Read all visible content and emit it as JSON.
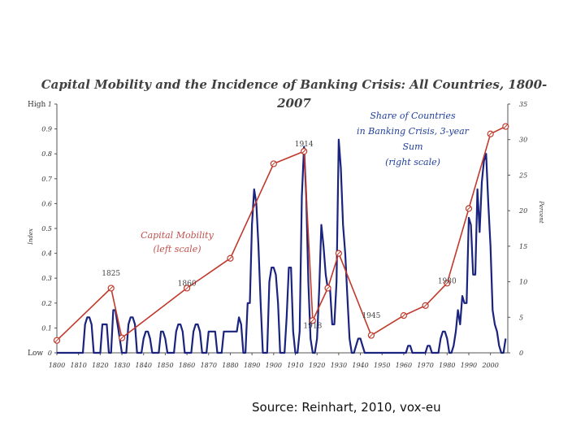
{
  "source_text": "Source: Reinhart, 2010, vox-eu",
  "chart_data": {
    "type": "line",
    "title_line1": "Capital Mobility and the Incidence of Banking Crisis: All Countries, 1800-",
    "title_line2": "2007",
    "x_ticks": [
      1800,
      1810,
      1820,
      1830,
      1840,
      1850,
      1860,
      1870,
      1880,
      1890,
      1900,
      1910,
      1920,
      1930,
      1940,
      1950,
      1960,
      1970,
      1980,
      1990,
      2000
    ],
    "xlim": [
      1800,
      2008
    ],
    "left_axis": {
      "label": "Index",
      "ylim": [
        0,
        1
      ],
      "ticks": [
        0,
        0.1,
        0.2,
        0.3,
        0.4,
        0.5,
        0.6,
        0.7,
        0.8,
        0.9,
        1
      ],
      "tick_labels": [
        "0",
        "0.1",
        "0.2",
        "0.3",
        "0.4",
        "0.5",
        "0.6",
        "0.7",
        "0.8",
        "0.9",
        "1"
      ],
      "high_label": "High",
      "low_label": "Low"
    },
    "right_axis": {
      "label": "Percent",
      "ylim": [
        0,
        35
      ],
      "ticks": [
        0,
        5,
        10,
        15,
        20,
        25,
        30,
        35
      ],
      "tick_labels": [
        "0",
        "5",
        "10",
        "15",
        "20",
        "25",
        "30",
        "35"
      ]
    },
    "annotations": {
      "capital_mobility": [
        "Capital Mobility",
        "(left scale)"
      ],
      "banking_crises": [
        "Share of Countries",
        "in Banking Crisis, 3-year",
        "Sum",
        "(right scale)"
      ]
    },
    "year_labels": [
      {
        "text": "1825",
        "x": 1825,
        "y": 0.31
      },
      {
        "text": "1860",
        "x": 1860,
        "y": 0.27
      },
      {
        "text": "1914",
        "x": 1914,
        "y": 0.83
      },
      {
        "text": "1918",
        "x": 1918,
        "y": 0.1
      },
      {
        "text": "1945",
        "x": 1945,
        "y": 0.14
      },
      {
        "text": "1980",
        "x": 1980,
        "y": 0.28
      }
    ],
    "series": [
      {
        "name": "Capital Mobility (left scale)",
        "axis": "left",
        "color": "#c0392b",
        "x": [
          1800,
          1825,
          1830,
          1860,
          1880,
          1900,
          1914,
          1918,
          1925,
          1930,
          1945,
          1960,
          1970,
          1980,
          1990,
          2000,
          2007
        ],
        "y": [
          0.05,
          0.26,
          0.06,
          0.26,
          0.38,
          0.76,
          0.81,
          0.13,
          0.26,
          0.4,
          0.07,
          0.15,
          0.19,
          0.28,
          0.58,
          0.88,
          0.91
        ]
      },
      {
        "name": "Share of Countries in Banking Crisis, 3-year Sum (right scale)",
        "axis": "right",
        "color": "#1a237e",
        "x": [
          1800,
          1812,
          1813,
          1814,
          1815,
          1816,
          1817,
          1818,
          1820,
          1821,
          1822,
          1823,
          1824,
          1825,
          1826,
          1827,
          1828,
          1829,
          1830,
          1832,
          1833,
          1834,
          1835,
          1836,
          1837,
          1838,
          1839,
          1840,
          1841,
          1842,
          1843,
          1844,
          1845,
          1847,
          1848,
          1849,
          1850,
          1851,
          1852,
          1854,
          1855,
          1856,
          1857,
          1858,
          1859,
          1860,
          1862,
          1863,
          1864,
          1865,
          1866,
          1867,
          1868,
          1869,
          1870,
          1871,
          1872,
          1873,
          1874,
          1875,
          1876,
          1877,
          1878,
          1879,
          1880,
          1881,
          1882,
          1883,
          1884,
          1885,
          1886,
          1887,
          1888,
          1889,
          1890,
          1891,
          1892,
          1893,
          1894,
          1895,
          1896,
          1897,
          1898,
          1899,
          1900,
          1901,
          1902,
          1903,
          1904,
          1905,
          1906,
          1907,
          1908,
          1909,
          1910,
          1911,
          1912,
          1913,
          1914,
          1915,
          1916,
          1917,
          1918,
          1919,
          1920,
          1921,
          1922,
          1923,
          1924,
          1925,
          1926,
          1927,
          1928,
          1929,
          1930,
          1931,
          1932,
          1933,
          1934,
          1935,
          1936,
          1937,
          1938,
          1939,
          1940,
          1941,
          1942,
          1943,
          1944,
          1945,
          1946,
          1947,
          1948,
          1949,
          1950,
          1951,
          1952,
          1953,
          1954,
          1955,
          1956,
          1957,
          1958,
          1959,
          1960,
          1961,
          1962,
          1963,
          1964,
          1965,
          1966,
          1967,
          1968,
          1969,
          1970,
          1971,
          1972,
          1973,
          1974,
          1975,
          1976,
          1977,
          1978,
          1979,
          1980,
          1981,
          1982,
          1983,
          1984,
          1985,
          1986,
          1987,
          1988,
          1989,
          1990,
          1991,
          1992,
          1993,
          1994,
          1995,
          1996,
          1997,
          1998,
          1999,
          2000,
          2001,
          2002,
          2003,
          2004,
          2005,
          2006,
          2007
        ],
        "y": [
          0,
          0,
          4,
          5,
          5,
          4,
          0,
          0,
          0,
          4,
          4,
          4,
          0,
          0,
          6,
          6,
          4,
          2,
          0,
          0,
          4,
          5,
          5,
          4,
          0,
          0,
          0,
          2,
          3,
          3,
          2,
          0,
          0,
          0,
          3,
          3,
          2,
          0,
          0,
          0,
          3,
          4,
          4,
          3,
          0,
          0,
          0,
          3,
          4,
          4,
          3,
          0,
          0,
          0,
          3,
          3,
          3,
          3,
          0,
          0,
          0,
          3,
          3,
          3,
          3,
          3,
          3,
          3,
          5,
          4,
          0,
          0,
          7,
          7,
          18,
          23,
          21,
          15,
          7,
          0,
          0,
          0,
          10,
          12,
          12,
          11,
          7,
          0,
          0,
          0,
          5,
          12,
          12,
          3,
          0,
          0,
          3,
          22,
          29,
          22,
          10,
          2,
          0,
          0,
          2,
          9,
          18,
          15,
          11,
          9,
          9,
          4,
          4,
          10,
          30,
          26,
          18,
          14,
          8,
          2,
          0,
          0,
          1,
          2,
          2,
          1,
          0,
          0,
          0,
          0,
          0,
          0,
          0,
          0,
          0,
          0,
          0,
          0,
          0,
          0,
          0,
          0,
          0,
          0,
          0,
          0,
          1,
          1,
          0,
          0,
          0,
          0,
          0,
          0,
          0,
          1,
          1,
          0,
          0,
          0,
          0,
          2,
          3,
          3,
          2,
          0,
          0,
          1,
          3,
          6,
          4,
          8,
          7,
          7,
          19,
          18,
          11,
          11,
          23,
          17,
          24,
          27,
          28,
          21,
          15,
          6,
          4,
          3,
          1,
          0,
          0,
          2
        ]
      }
    ]
  }
}
